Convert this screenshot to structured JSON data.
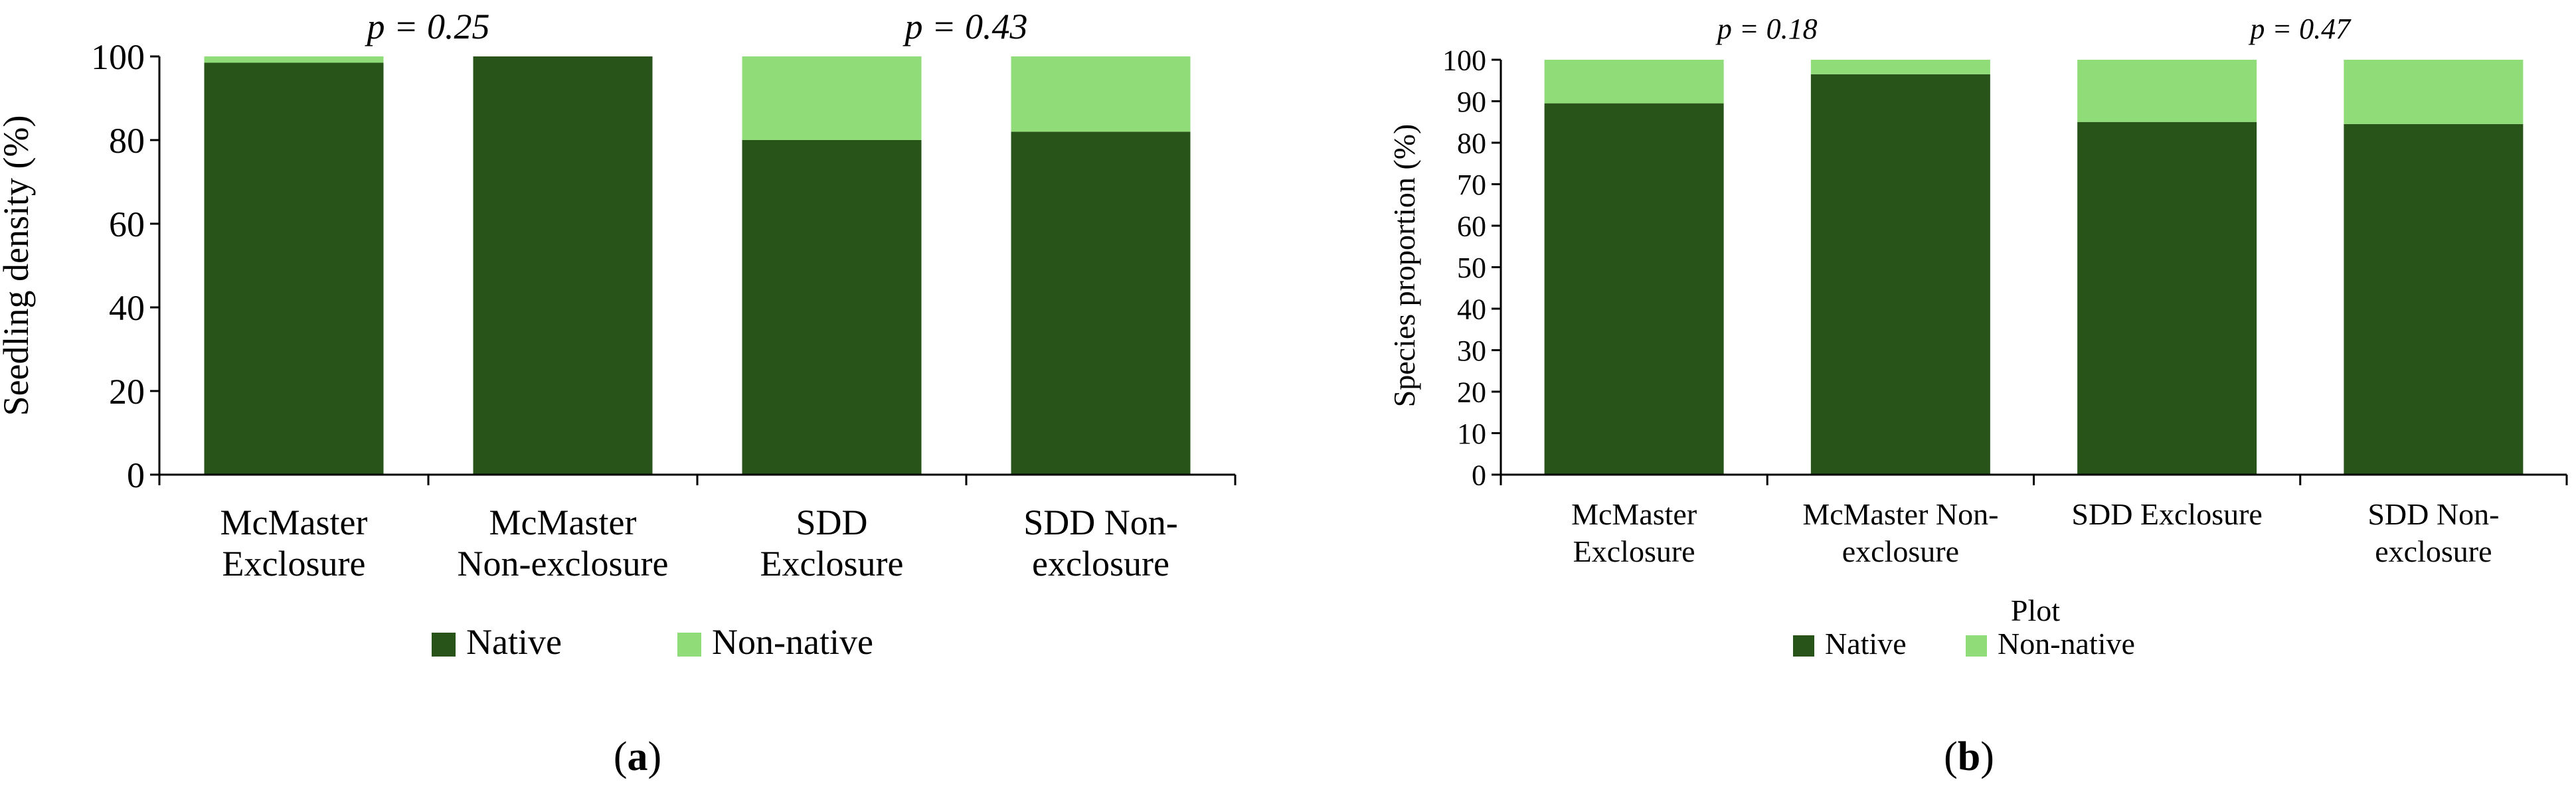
{
  "colors": {
    "native": "#28541a",
    "non_native": "#8fdc78",
    "axis": "#000000"
  },
  "chart_data": [
    {
      "type": "bar",
      "stacked": true,
      "panel_label": "a",
      "ylabel": "Seedling density (%)",
      "xlabel": "",
      "ylim": [
        0,
        100
      ],
      "yticks": [
        0,
        20,
        40,
        60,
        80,
        100
      ],
      "categories": [
        [
          "McMaster",
          "Exclosure"
        ],
        [
          "McMaster",
          "Non-exclosure"
        ],
        [
          "SDD",
          "Exclosure"
        ],
        [
          "SDD Non-",
          "exclosure"
        ]
      ],
      "series": [
        {
          "name": "Native",
          "values": [
            98.5,
            100,
            80,
            82
          ]
        },
        {
          "name": "Non-native",
          "values": [
            1.5,
            0,
            20,
            18
          ]
        }
      ],
      "annotations": [
        {
          "p": "p",
          "rest": " = 0.25",
          "between": [
            0,
            1
          ]
        },
        {
          "p": "p",
          "rest": " = 0.43",
          "between": [
            2,
            3
          ]
        }
      ],
      "legend": [
        "Native",
        "Non-native"
      ]
    },
    {
      "type": "bar",
      "stacked": true,
      "panel_label": "b",
      "ylabel": "Species proportion (%)",
      "xlabel": "Plot",
      "ylim": [
        0,
        100
      ],
      "yticks": [
        0,
        10,
        20,
        30,
        40,
        50,
        60,
        70,
        80,
        90,
        100
      ],
      "categories": [
        [
          "McMaster",
          "Exclosure"
        ],
        [
          "McMaster Non-",
          "exclosure"
        ],
        [
          "SDD Exclosure"
        ],
        [
          "SDD Non-",
          "exclosure"
        ]
      ],
      "series": [
        {
          "name": "Native",
          "values": [
            89.5,
            96.5,
            85,
            84.5
          ]
        },
        {
          "name": "Non-native",
          "values": [
            10.5,
            3.5,
            15,
            15.5
          ]
        }
      ],
      "annotations": [
        {
          "p": "p",
          "rest": " = 0.18",
          "between": [
            0,
            1
          ]
        },
        {
          "p": "p",
          "rest": " = 0.47",
          "between": [
            2,
            3
          ]
        }
      ],
      "legend": [
        "Native",
        "Non-native"
      ]
    }
  ]
}
